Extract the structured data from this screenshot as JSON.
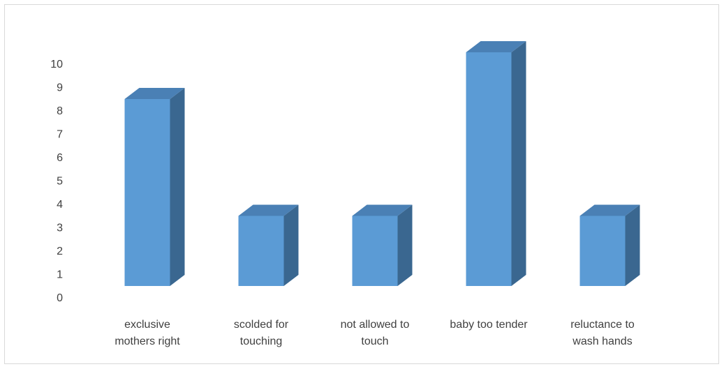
{
  "chart_data": {
    "type": "bar",
    "style": "3d-column",
    "categories": [
      "exclusive mothers right",
      "scolded for touching",
      "not allowed to touch",
      "baby too tender",
      "reluctance to wash hands"
    ],
    "category_label_lines": [
      [
        "exclusive",
        "mothers right"
      ],
      [
        "scolded for",
        "touching"
      ],
      [
        "not allowed to",
        "touch"
      ],
      [
        "baby too tender"
      ],
      [
        "reluctance to",
        "wash hands"
      ]
    ],
    "values": [
      8,
      3,
      3,
      10,
      3
    ],
    "ylim": [
      0,
      10
    ],
    "yticks": [
      0,
      1,
      2,
      3,
      4,
      5,
      6,
      7,
      8,
      9,
      10
    ],
    "grid": false,
    "legend": "none",
    "colors": {
      "front": "#5b9bd5",
      "side": "#3a6790",
      "top": "#4a80b5",
      "text": "#404040",
      "border": "#d9d9d9"
    }
  }
}
